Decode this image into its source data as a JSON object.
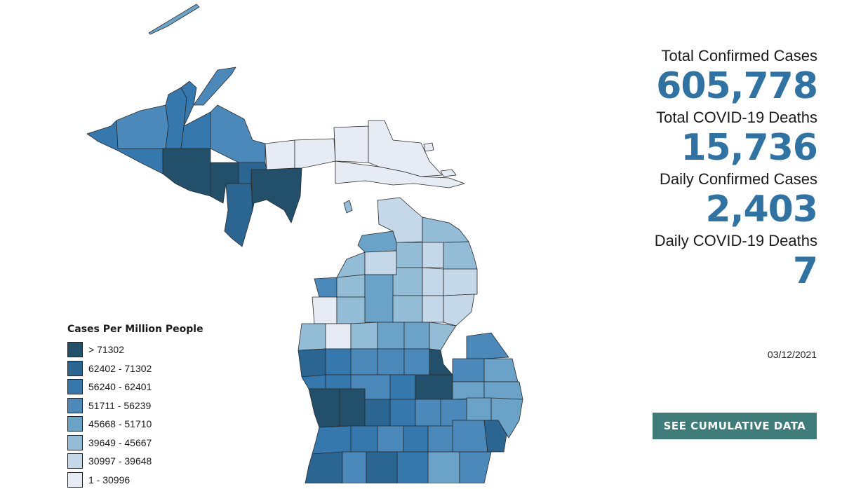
{
  "map": {
    "region": "Michigan",
    "colors": [
      "#e6ebf4",
      "#c4d8ea",
      "#93bcd7",
      "#6aa2c8",
      "#4b89bb",
      "#3478ad",
      "#2b6591",
      "#224f69"
    ]
  },
  "legend": {
    "title": "Cases Per Million People",
    "items": [
      {
        "label": "> 71302",
        "color": "#224f69"
      },
      {
        "label": "62402 - 71302",
        "color": "#2b6591"
      },
      {
        "label": "56240 - 62401",
        "color": "#3478ad"
      },
      {
        "label": "51711 - 56239",
        "color": "#4b89bb"
      },
      {
        "label": "45668 - 51710",
        "color": "#6aa2c8"
      },
      {
        "label": "39649 - 45667",
        "color": "#93bcd7"
      },
      {
        "label": "30997 - 39648",
        "color": "#c4d8ea"
      },
      {
        "label": "1 - 30996",
        "color": "#e6ebf4"
      }
    ]
  },
  "stats": {
    "total_cases_label": "Total Confirmed Cases",
    "total_cases_value": "605,778",
    "total_deaths_label": "Total COVID-19 Deaths",
    "total_deaths_value": "15,736",
    "daily_cases_label": "Daily Confirmed Cases",
    "daily_cases_value": "2,403",
    "daily_deaths_label": "Daily COVID-19 Deaths",
    "daily_deaths_value": "7"
  },
  "date": "03/12/2021",
  "cta_label": "SEE CUMULATIVE DATA"
}
